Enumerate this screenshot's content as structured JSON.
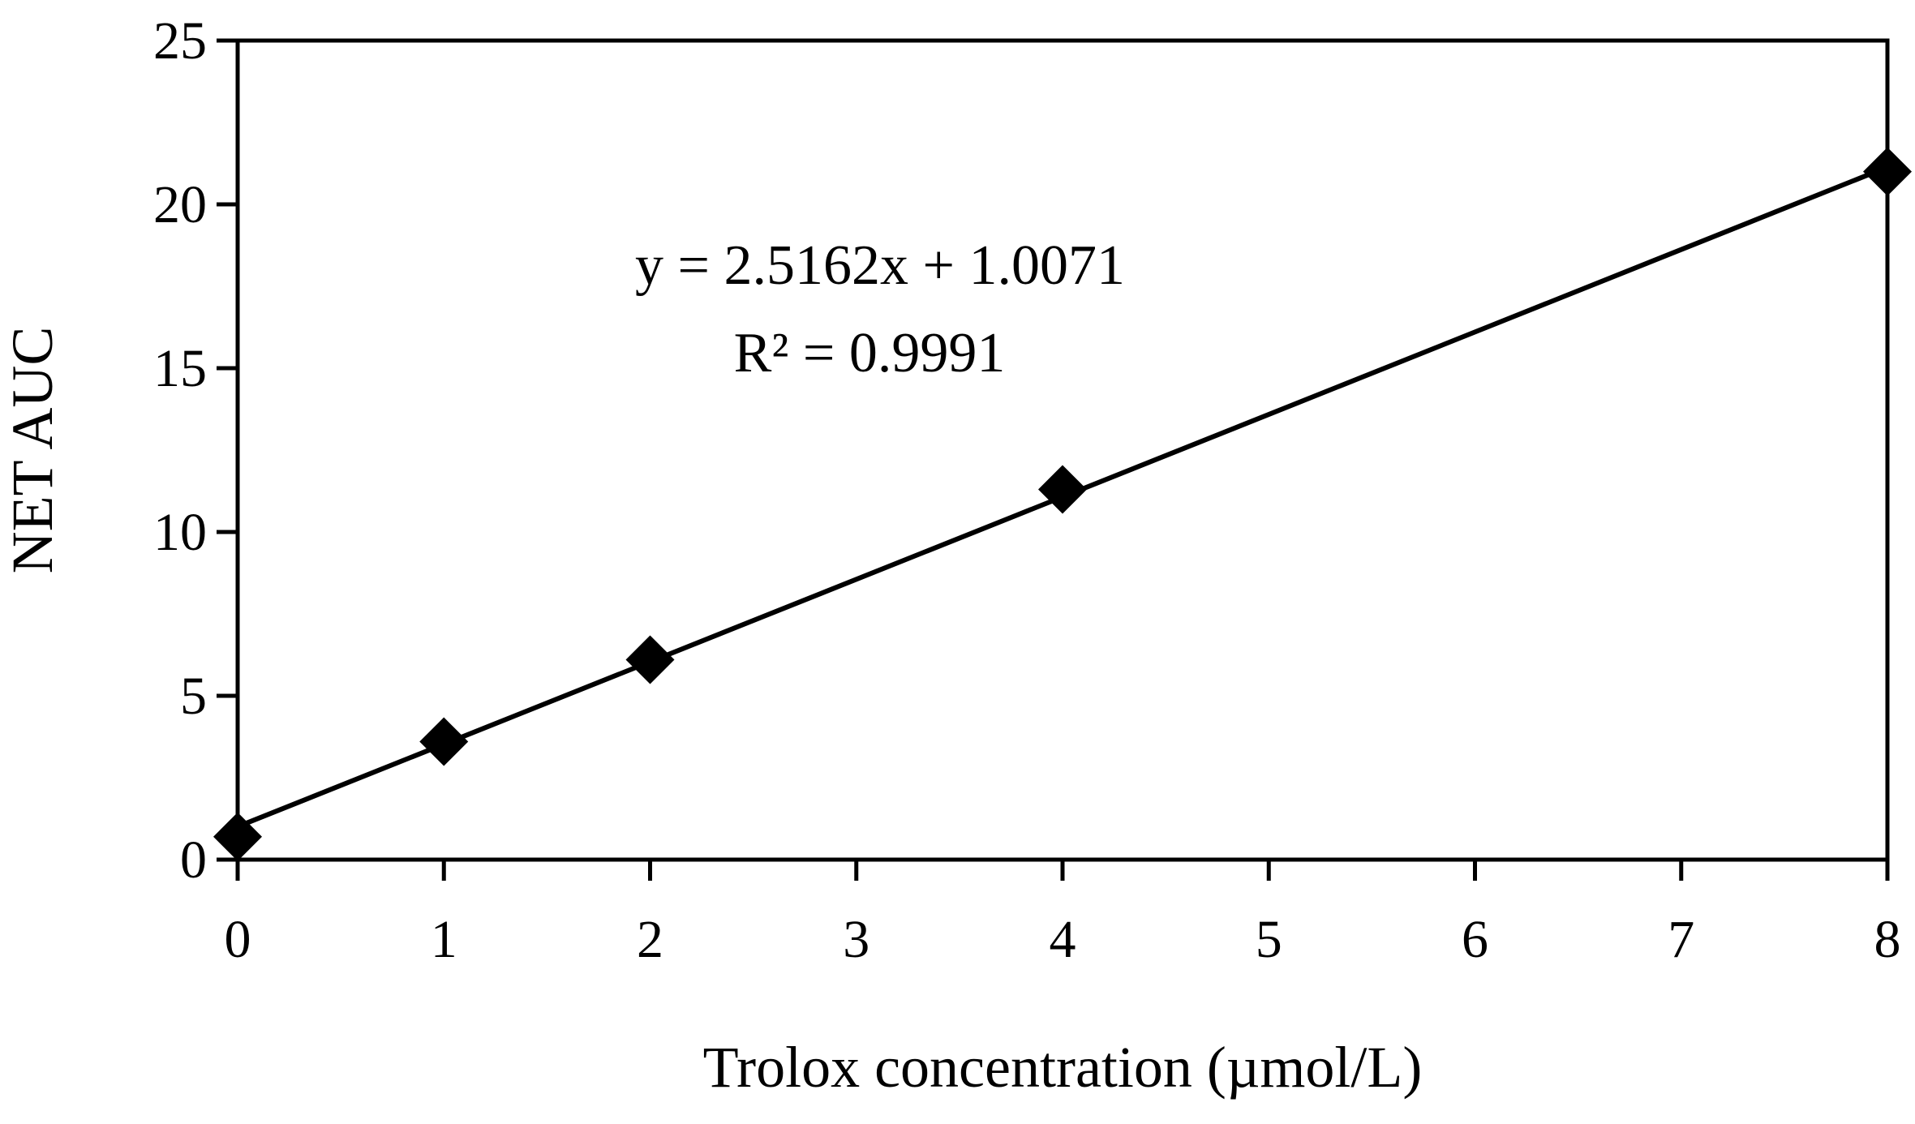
{
  "chart_data": {
    "type": "scatter",
    "xlabel": "Trolox concentration (µmol/L)",
    "ylabel": "NET AUC",
    "xlim": [
      0,
      8
    ],
    "ylim": [
      0,
      25
    ],
    "xticks": [
      0,
      1,
      2,
      3,
      4,
      5,
      6,
      7,
      8
    ],
    "yticks": [
      0,
      5,
      10,
      15,
      20,
      25
    ],
    "grid": false,
    "series": [
      {
        "marker": "diamond",
        "color": "#000000",
        "x": [
          0,
          1,
          2,
          4,
          8
        ],
        "y": [
          0.7,
          3.6,
          6.1,
          11.3,
          21.0
        ]
      }
    ],
    "trendline": {
      "type": "linear",
      "slope": 2.5162,
      "intercept": 1.0071,
      "color": "#000000"
    },
    "annotations": [
      "y = 2.5162x + 1.0071",
      "R² = 0.9991"
    ]
  }
}
